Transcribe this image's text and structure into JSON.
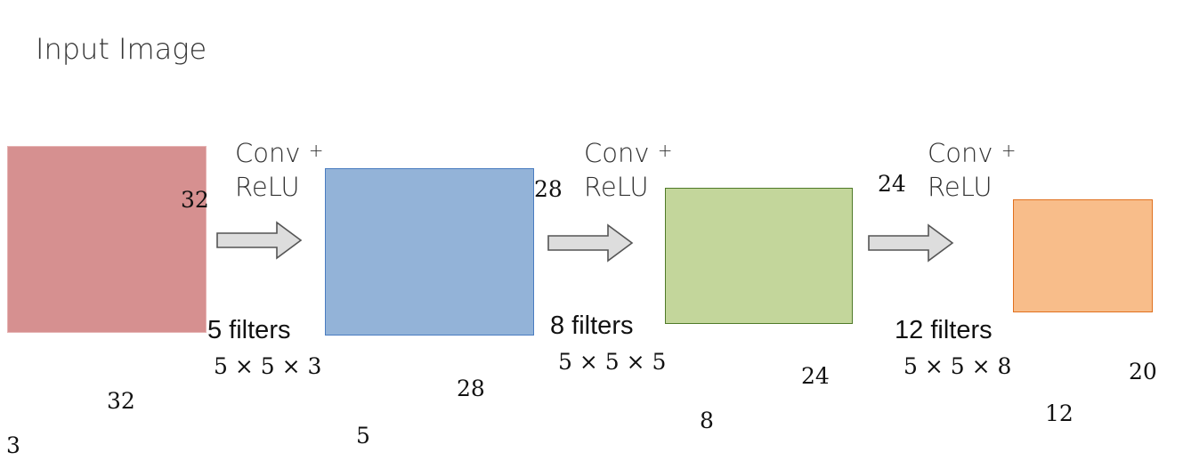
{
  "title": "Input Image",
  "colors": {
    "input_fill": "#d69090",
    "layer1_fill": "#93b3d8",
    "layer1_border": "#4a7cc0",
    "layer2_fill": "#c3d69b",
    "layer2_border": "#4f7a28",
    "layer3_fill": "#f8bd8a",
    "layer3_border": "#e0701e",
    "arrow_fill": "#dddddd",
    "arrow_stroke": "#555555"
  },
  "input": {
    "height": "32",
    "width": "32",
    "depth": "3"
  },
  "stages": [
    {
      "op_line1": "Conv",
      "op_plus": "+",
      "op_line2": "ReLU",
      "filters": "5 filters",
      "kernel": "5 × 5 × 3",
      "out_height": "28",
      "out_width": "28",
      "out_depth": "5"
    },
    {
      "op_line1": "Conv",
      "op_plus": "+",
      "op_line2": "ReLU",
      "filters": "8 filters",
      "kernel": "5 × 5 × 5",
      "out_height": "24",
      "out_width": "24",
      "out_depth": "8"
    },
    {
      "op_line1": "Conv",
      "op_plus": "+",
      "op_line2": "ReLU",
      "filters": "12 filters",
      "kernel": "5 × 5 × 8",
      "out_width": "20",
      "out_depth": "12"
    }
  ]
}
